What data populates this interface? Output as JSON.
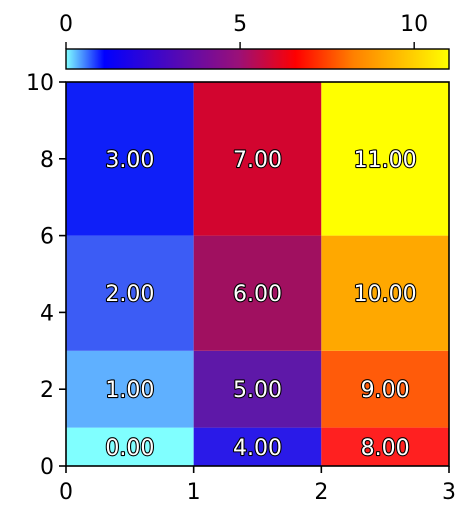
{
  "chart_data": {
    "type": "heatmap",
    "x_edges": [
      0,
      1,
      2,
      3
    ],
    "y_edges": [
      0,
      1,
      3,
      6,
      10
    ],
    "x_ticks": [
      0,
      1,
      2,
      3
    ],
    "y_ticks": [
      0,
      2,
      4,
      6,
      8,
      10
    ],
    "xlim": [
      0,
      3
    ],
    "ylim": [
      0,
      10
    ],
    "values": [
      [
        0,
        4,
        8
      ],
      [
        1,
        5,
        9
      ],
      [
        2,
        6,
        10
      ],
      [
        3,
        7,
        11
      ]
    ],
    "cell_labels": [
      [
        "0.00",
        "4.00",
        "8.00"
      ],
      [
        "1.00",
        "5.00",
        "9.00"
      ],
      [
        "2.00",
        "6.00",
        "10.00"
      ],
      [
        "3.00",
        "7.00",
        "11.00"
      ]
    ],
    "colorbar": {
      "position": "top",
      "range": [
        0,
        11
      ],
      "ticks": [
        0,
        5,
        10
      ],
      "stops": [
        {
          "offset": 0.0,
          "color": "#80ffff"
        },
        {
          "offset": 0.1,
          "color": "#0000ff"
        },
        {
          "offset": 0.45,
          "color": "#9a1078"
        },
        {
          "offset": 0.6,
          "color": "#ff0000"
        },
        {
          "offset": 0.75,
          "color": "#ff8000"
        },
        {
          "offset": 1.0,
          "color": "#ffff00"
        }
      ]
    },
    "cell_colors": [
      [
        "#80ffff",
        "#2a1ae8",
        "#ff2020"
      ],
      [
        "#5fb0ff",
        "#5e18a8",
        "#ff5b0a"
      ],
      [
        "#3c5cf5",
        "#a01060",
        "#ffa800"
      ],
      [
        "#0f1ff8",
        "#d2052f",
        "#ffff00"
      ]
    ]
  }
}
